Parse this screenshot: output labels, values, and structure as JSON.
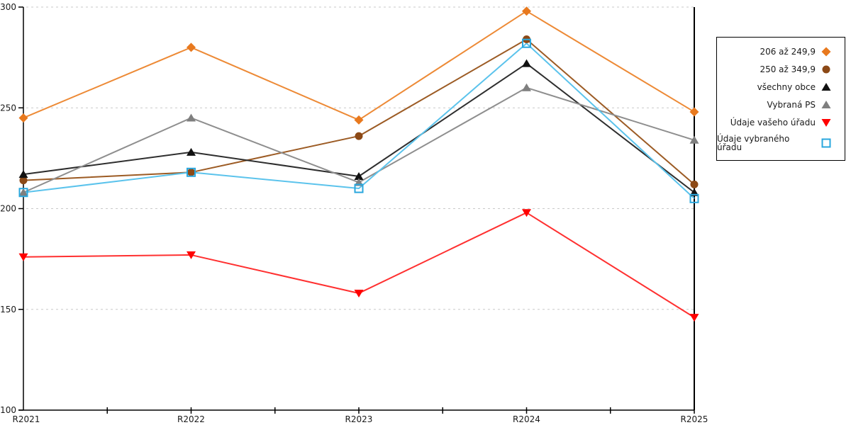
{
  "chart_data": {
    "type": "line",
    "title": "",
    "xlabel": "",
    "ylabel": "",
    "categories": [
      "R2021",
      "R2022",
      "R2023",
      "R2024",
      "R2025"
    ],
    "series": [
      {
        "name": "206 až 249,9",
        "marker": "diamond",
        "color": "#E8791E",
        "line_color": "#ED8A36",
        "values": [
          245,
          280,
          244,
          298,
          248
        ]
      },
      {
        "name": "250 až 349,9",
        "marker": "circle",
        "color": "#8C4916",
        "line_color": "#9C5B24",
        "values": [
          214,
          218,
          236,
          284,
          212
        ]
      },
      {
        "name": "všechny obce",
        "marker": "triangle-up",
        "color": "#111111",
        "line_color": "#2E2E2E",
        "values": [
          217,
          228,
          216,
          272,
          208
        ]
      },
      {
        "name": "Vybraná PS",
        "marker": "triangle-up",
        "color": "#7F7F7F",
        "line_color": "#8E8E8E",
        "values": [
          208,
          245,
          213,
          260,
          234
        ]
      },
      {
        "name": "Údaje vašeho úřadu",
        "marker": "triangle-down",
        "color": "#FF0000",
        "line_color": "#FF3030",
        "values": [
          176,
          177,
          158,
          198,
          146
        ]
      },
      {
        "name": "Údaje vybraného úřadu",
        "marker": "square-open",
        "color": "#29A7DE",
        "line_color": "#5BC3EC",
        "values": [
          208,
          218,
          210,
          282,
          205
        ]
      }
    ],
    "ylim": [
      100,
      300
    ],
    "y_ticks": [
      100,
      150,
      200,
      250,
      300
    ],
    "grid": "horizontal-dashed",
    "legend_position": "right"
  },
  "colors": {
    "background": "#FFFFFF",
    "grid": "#C9C9C9",
    "axis": "#000000",
    "tick_text": "#1A1A1A"
  }
}
